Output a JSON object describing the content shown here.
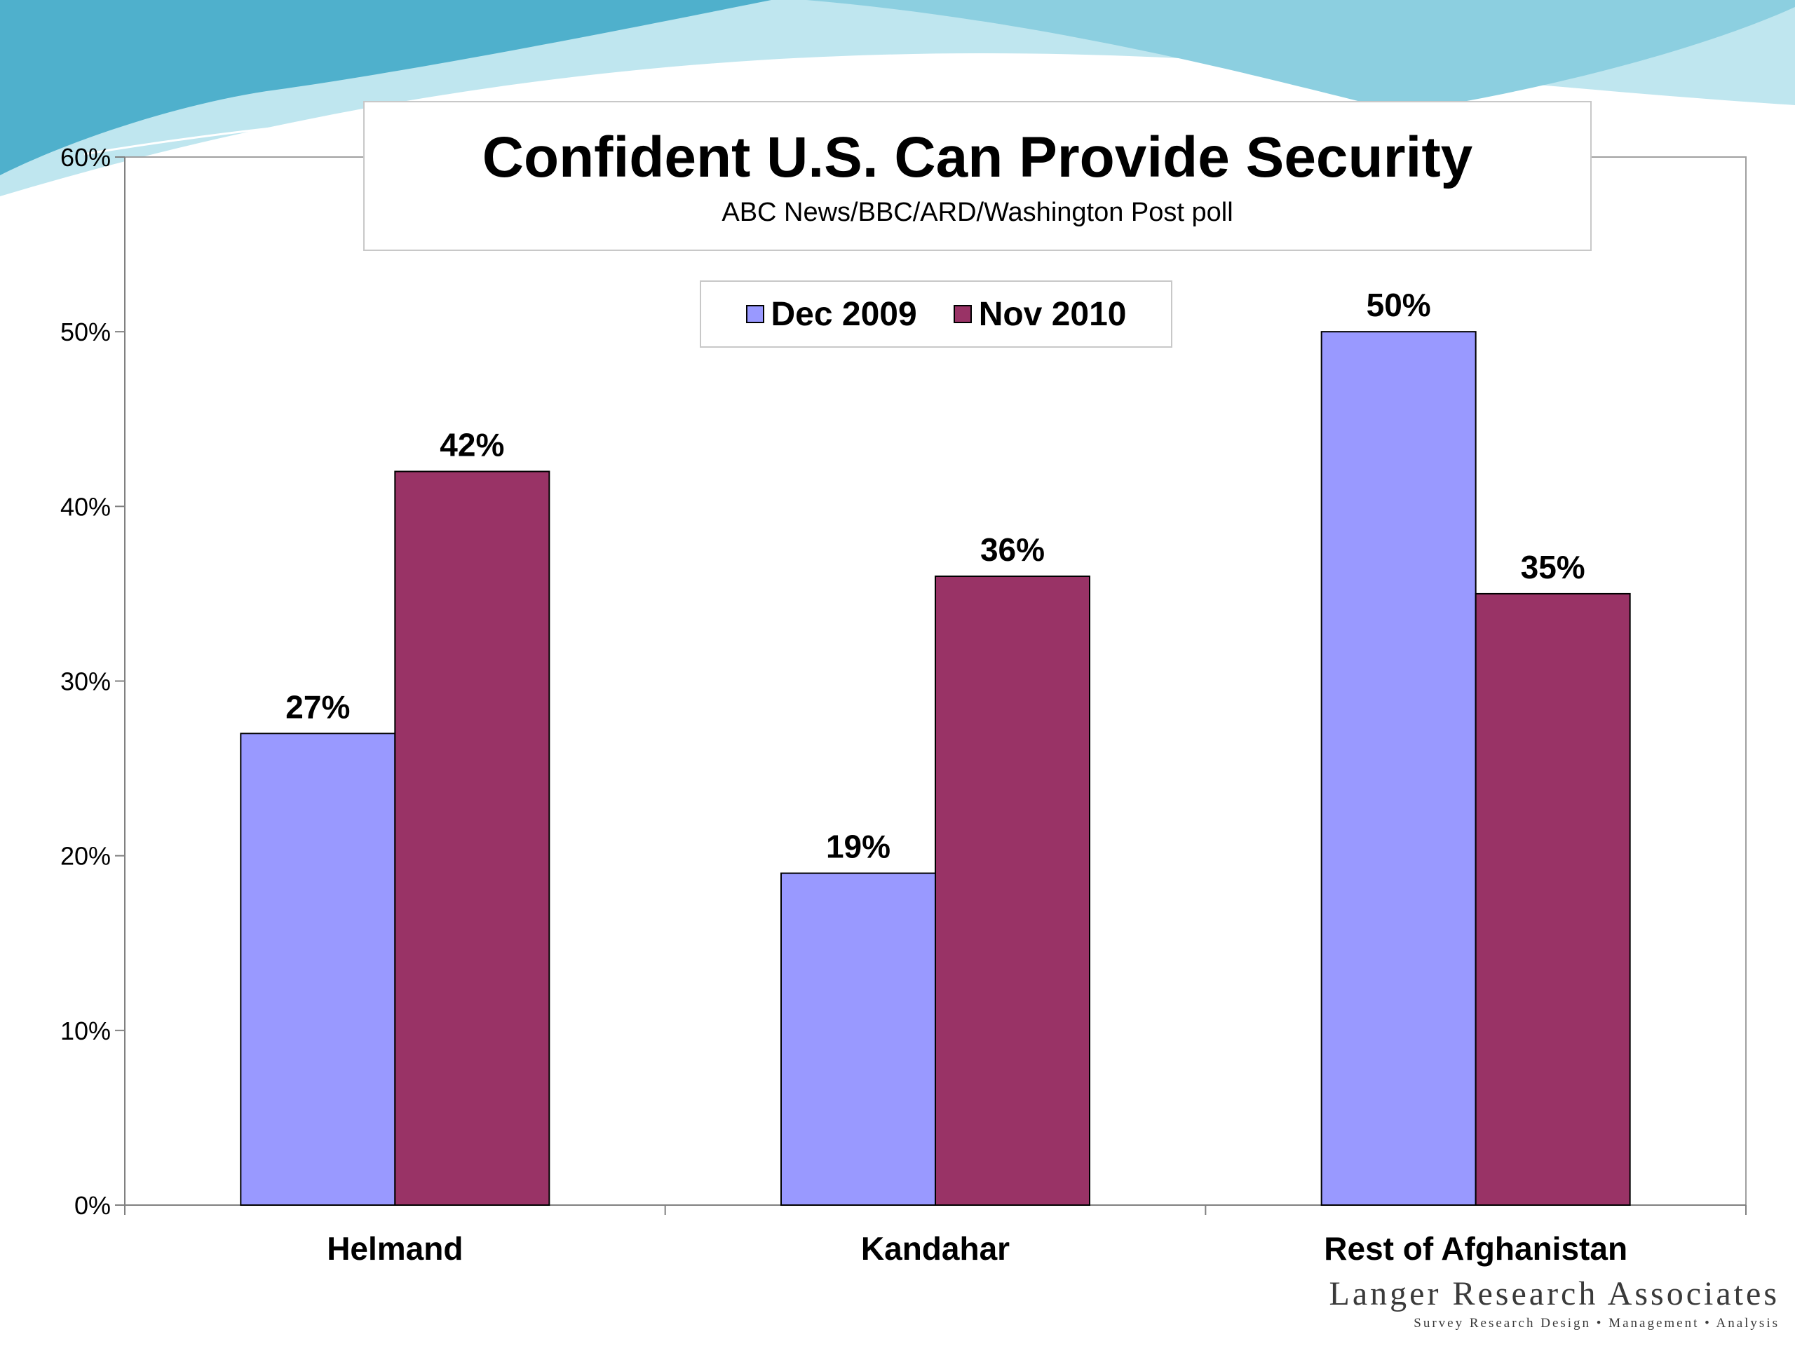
{
  "colors": {
    "series_dec_2009": "#9999ff",
    "series_nov_2010": "#993366",
    "swoosh_light": "#bfe6ef",
    "swoosh_mid": "#8ccfe0",
    "swoosh_dark": "#4fb0cc"
  },
  "logo": {
    "name": "Langer Research Associates",
    "tagline": "Survey Research Design • Management • Analysis"
  },
  "chart_data": {
    "type": "bar",
    "title": "Confident U.S. Can Provide Security",
    "subtitle": "ABC News/BBC/ARD/Washington Post poll",
    "categories": [
      "Helmand",
      "Kandahar",
      "Rest of Afghanistan"
    ],
    "series": [
      {
        "name": "Dec 2009",
        "values": [
          27,
          19,
          50
        ],
        "labels": [
          "27%",
          "19%",
          "50%"
        ]
      },
      {
        "name": "Nov 2010",
        "values": [
          42,
          36,
          35
        ],
        "labels": [
          "42%",
          "36%",
          "35%"
        ]
      }
    ],
    "ylim": [
      0,
      60
    ],
    "yticks": [
      0,
      10,
      20,
      30,
      40,
      50,
      60
    ],
    "ytick_labels": [
      "0%",
      "10%",
      "20%",
      "30%",
      "40%",
      "50%",
      "60%"
    ],
    "xlabel": "",
    "ylabel": "",
    "grid": false,
    "legend": "top-center"
  }
}
